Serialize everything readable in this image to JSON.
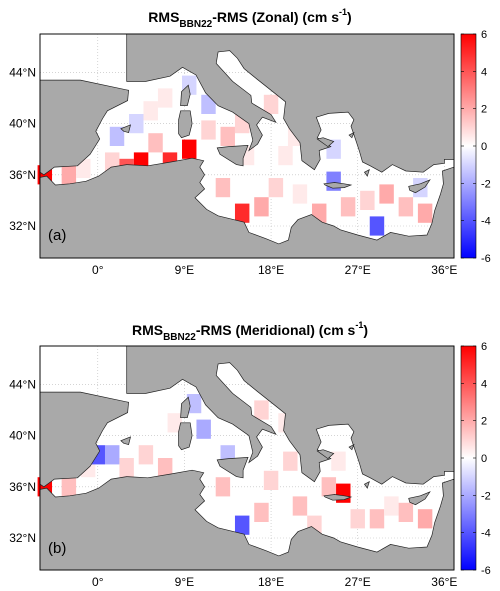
{
  "figure": {
    "panels": [
      {
        "id": "a",
        "title_main": "RMS",
        "title_sub": "BBN22",
        "title_rest": "-RMS (Zonal) (cm  s",
        "title_sup": "-1",
        "title_close": ")",
        "panel_label": "(a)",
        "lat_ticks": [
          "32°N",
          "36°N",
          "40°N",
          "44°N"
        ],
        "lon_ticks": [
          "0°",
          "9°E",
          "18°E",
          "27°E",
          "36°E"
        ],
        "colorbar_ticks": [
          "6",
          "4",
          "2",
          "0",
          "-2",
          "-4",
          "-6"
        ],
        "colorbar_range": [
          -6,
          6
        ],
        "cells": [
          {
            "lon": -5.5,
            "lat": 36,
            "v": 6
          },
          {
            "lon": -3,
            "lat": 36,
            "v": 2
          },
          {
            "lon": -1.5,
            "lat": 36.5,
            "v": 0.5
          },
          {
            "lon": 1.5,
            "lat": 37,
            "v": 1
          },
          {
            "lon": 3,
            "lat": 36.5,
            "v": 4
          },
          {
            "lon": 4.5,
            "lat": 37,
            "v": 6
          },
          {
            "lon": 7.5,
            "lat": 37,
            "v": 5
          },
          {
            "lon": 6,
            "lat": 38.5,
            "v": 1.5
          },
          {
            "lon": 9.5,
            "lat": 38,
            "v": 6
          },
          {
            "lon": 2,
            "lat": 39,
            "v": -1.5
          },
          {
            "lon": 4,
            "lat": 40,
            "v": -1
          },
          {
            "lon": 5.5,
            "lat": 41,
            "v": 0.5
          },
          {
            "lon": 7,
            "lat": 42,
            "v": 0.5
          },
          {
            "lon": 9.5,
            "lat": 43,
            "v": -1
          },
          {
            "lon": 11.5,
            "lat": 41.5,
            "v": -1.5
          },
          {
            "lon": 11.5,
            "lat": 39.5,
            "v": 1
          },
          {
            "lon": 13.5,
            "lat": 39,
            "v": 1.5
          },
          {
            "lon": 15,
            "lat": 40,
            "v": 1
          },
          {
            "lon": 15.5,
            "lat": 37.5,
            "v": 0.5
          },
          {
            "lon": 13,
            "lat": 35,
            "v": 1.5
          },
          {
            "lon": 15,
            "lat": 33,
            "v": 5
          },
          {
            "lon": 17,
            "lat": 33.5,
            "v": 2
          },
          {
            "lon": 18.5,
            "lat": 35,
            "v": 1
          },
          {
            "lon": 19.5,
            "lat": 37.5,
            "v": 0.5
          },
          {
            "lon": 18,
            "lat": 41.5,
            "v": 1
          },
          {
            "lon": 20.5,
            "lat": 39,
            "v": 0.5
          },
          {
            "lon": 21,
            "lat": 34.5,
            "v": 0.5
          },
          {
            "lon": 23,
            "lat": 33,
            "v": 2
          },
          {
            "lon": 24.5,
            "lat": 35.5,
            "v": -3
          },
          {
            "lon": 24.5,
            "lat": 38,
            "v": -1
          },
          {
            "lon": 26,
            "lat": 33.5,
            "v": 1.5
          },
          {
            "lon": 28,
            "lat": 34,
            "v": 1
          },
          {
            "lon": 30,
            "lat": 34.5,
            "v": 2
          },
          {
            "lon": 32,
            "lat": 33.5,
            "v": 1.5
          },
          {
            "lon": 33.5,
            "lat": 35,
            "v": -1
          },
          {
            "lon": 29,
            "lat": 32,
            "v": -4
          },
          {
            "lon": 34,
            "lat": 33,
            "v": 2
          }
        ]
      },
      {
        "id": "b",
        "title_main": "RMS",
        "title_sub": "BBN22",
        "title_rest": "-RMS (Meridional) (cm  s",
        "title_sup": "-1",
        "title_close": ")",
        "panel_label": "(b)",
        "lat_ticks": [
          "32°N",
          "36°N",
          "40°N",
          "44°N"
        ],
        "lon_ticks": [
          "0°",
          "9°E",
          "18°E",
          "27°E",
          "36°E"
        ],
        "colorbar_ticks": [
          "6",
          "4",
          "2",
          "0",
          "-2",
          "-4",
          "-6"
        ],
        "colorbar_range": [
          -6,
          6
        ],
        "cells": [
          {
            "lon": -5.5,
            "lat": 36,
            "v": 6
          },
          {
            "lon": -3,
            "lat": 36,
            "v": 1.5
          },
          {
            "lon": -1,
            "lat": 37.5,
            "v": 0.5
          },
          {
            "lon": 0,
            "lat": 38.5,
            "v": -4
          },
          {
            "lon": 1.5,
            "lat": 38.5,
            "v": -2
          },
          {
            "lon": 3,
            "lat": 37.5,
            "v": 1
          },
          {
            "lon": 5,
            "lat": 38.5,
            "v": 1
          },
          {
            "lon": 7,
            "lat": 37.5,
            "v": 1.5
          },
          {
            "lon": 8,
            "lat": 41,
            "v": 0.5
          },
          {
            "lon": 10,
            "lat": 42.5,
            "v": -1.5
          },
          {
            "lon": 11,
            "lat": 40.5,
            "v": -2
          },
          {
            "lon": 13.5,
            "lat": 38.5,
            "v": -1.5
          },
          {
            "lon": 13,
            "lat": 36,
            "v": 1.5
          },
          {
            "lon": 15,
            "lat": 33,
            "v": -4
          },
          {
            "lon": 17,
            "lat": 34,
            "v": 1.5
          },
          {
            "lon": 18,
            "lat": 36.5,
            "v": 1
          },
          {
            "lon": 17,
            "lat": 42,
            "v": 1
          },
          {
            "lon": 19.5,
            "lat": 41,
            "v": 0.5
          },
          {
            "lon": 20,
            "lat": 38,
            "v": 1
          },
          {
            "lon": 21,
            "lat": 34.5,
            "v": 1.5
          },
          {
            "lon": 22.5,
            "lat": 33,
            "v": 1
          },
          {
            "lon": 24,
            "lat": 36,
            "v": 1.5
          },
          {
            "lon": 25.5,
            "lat": 35.5,
            "v": 6
          },
          {
            "lon": 25,
            "lat": 38,
            "v": 0.5
          },
          {
            "lon": 27,
            "lat": 33.5,
            "v": 1
          },
          {
            "lon": 29,
            "lat": 33.5,
            "v": 1.5
          },
          {
            "lon": 30.5,
            "lat": 34.5,
            "v": 0.5
          },
          {
            "lon": 32,
            "lat": 34,
            "v": 1.5
          },
          {
            "lon": 34,
            "lat": 33.5,
            "v": 2
          }
        ]
      }
    ]
  }
}
